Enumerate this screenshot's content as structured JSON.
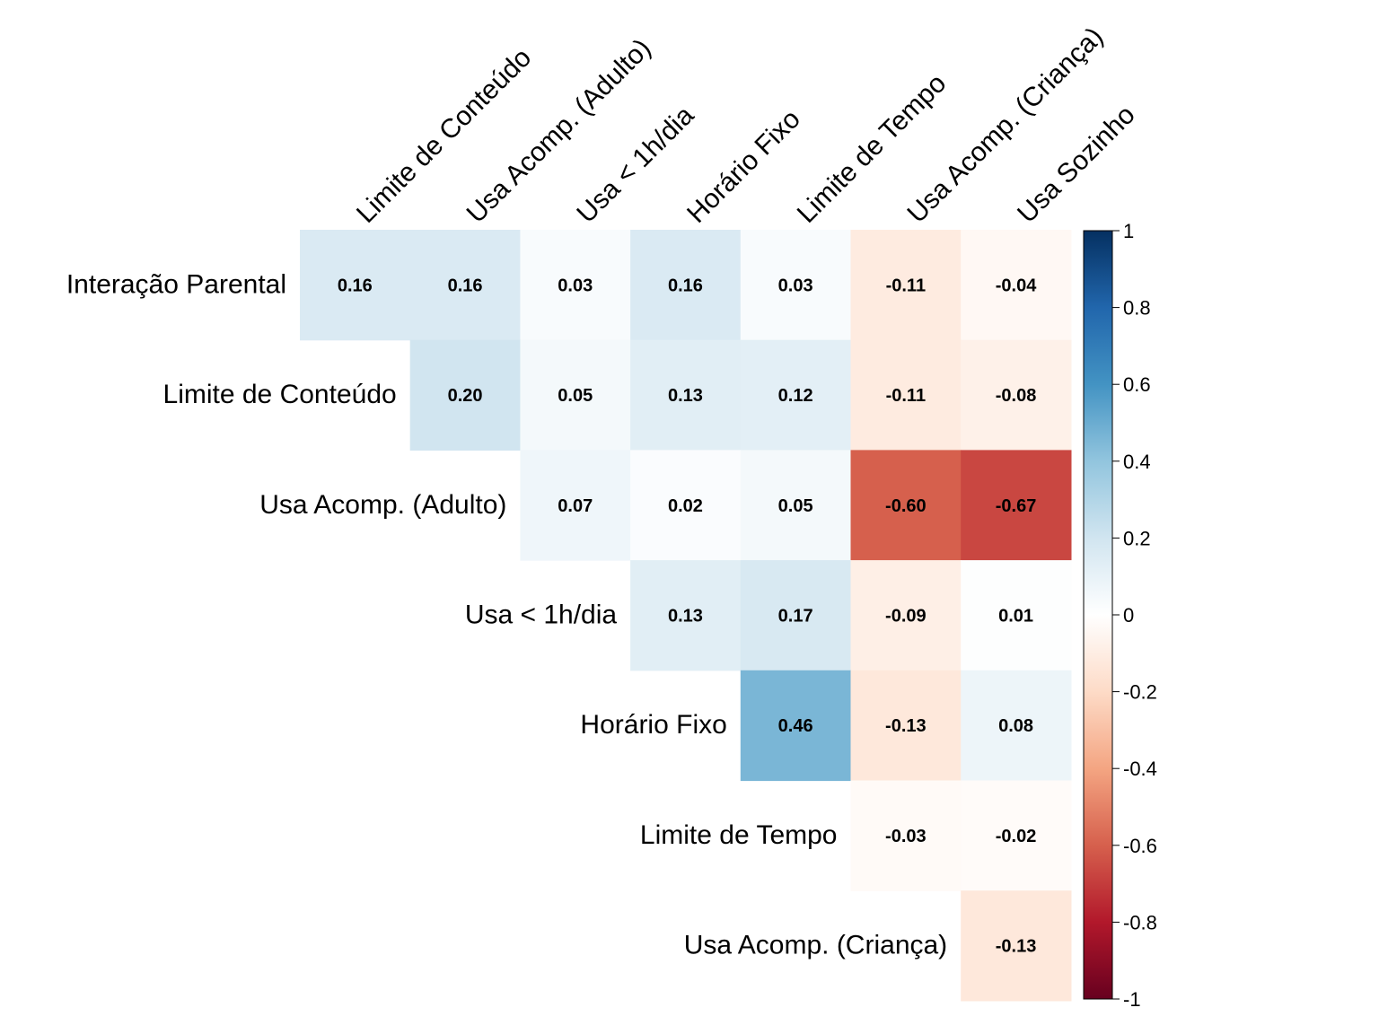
{
  "chart_data": {
    "type": "heatmap",
    "row_labels": [
      "Interação Parental",
      "Limite de Conteúdo",
      "Usa Acomp. (Adulto)",
      "Usa < 1h/dia",
      "Horário Fixo",
      "Limite de Tempo",
      "Usa Acomp. (Criança)"
    ],
    "col_labels": [
      "Limite de Conteúdo",
      "Usa Acomp. (Adulto)",
      "Usa < 1h/dia",
      "Horário Fixo",
      "Limite de Tempo",
      "Usa Acomp. (Criança)",
      "Usa Sozinho"
    ],
    "values": [
      [
        0.16,
        0.16,
        0.03,
        0.16,
        0.03,
        -0.11,
        -0.04
      ],
      [
        null,
        0.2,
        0.05,
        0.13,
        0.12,
        -0.11,
        -0.08
      ],
      [
        null,
        null,
        0.07,
        0.02,
        0.05,
        -0.6,
        -0.67
      ],
      [
        null,
        null,
        null,
        0.13,
        0.17,
        -0.09,
        0.01
      ],
      [
        null,
        null,
        null,
        null,
        0.46,
        -0.13,
        0.08
      ],
      [
        null,
        null,
        null,
        null,
        null,
        -0.03,
        -0.02
      ],
      [
        null,
        null,
        null,
        null,
        null,
        null,
        -0.13
      ]
    ],
    "value_labels": [
      [
        "0.16",
        "0.16",
        "0.03",
        "0.16",
        "0.03",
        "-0.11",
        "-0.04"
      ],
      [
        null,
        "0.20",
        "0.05",
        "0.13",
        "0.12",
        "-0.11",
        "-0.08"
      ],
      [
        null,
        null,
        "0.07",
        "0.02",
        "0.05",
        "-0.60",
        "-0.67"
      ],
      [
        null,
        null,
        null,
        "0.13",
        "0.17",
        "-0.09",
        "0.01"
      ],
      [
        null,
        null,
        null,
        null,
        "0.46",
        "-0.13",
        "0.08"
      ],
      [
        null,
        null,
        null,
        null,
        null,
        "-0.03",
        "-0.02"
      ],
      [
        null,
        null,
        null,
        null,
        null,
        null,
        "-0.13"
      ]
    ],
    "colorbar": {
      "range": [
        -1,
        1
      ],
      "ticks": [
        1,
        0.8,
        0.6,
        0.4,
        0.2,
        0,
        -0.2,
        -0.4,
        -0.6,
        -0.8,
        -1
      ],
      "tick_labels": [
        "1",
        "0.8",
        "0.6",
        "0.4",
        "0.2",
        "0",
        "-0.2",
        "-0.4",
        "-0.6",
        "-0.8",
        "-1"
      ]
    },
    "palette": {
      "low": "#67001F",
      "mid_low": "#D6604D",
      "mid": "#FFFFFF",
      "mid_high": "#4393C3",
      "high": "#053061"
    }
  }
}
